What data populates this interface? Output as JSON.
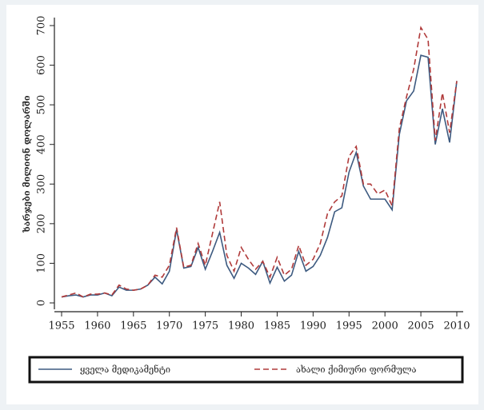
{
  "chart_data": {
    "type": "line",
    "y_label": "ხარჯები მილიონ დოლარში",
    "x": [
      1955,
      1956,
      1957,
      1958,
      1959,
      1960,
      1961,
      1962,
      1963,
      1964,
      1965,
      1966,
      1967,
      1968,
      1969,
      1970,
      1971,
      1972,
      1973,
      1974,
      1975,
      1976,
      1977,
      1978,
      1979,
      1980,
      1981,
      1982,
      1983,
      1984,
      1985,
      1986,
      1987,
      1988,
      1989,
      1990,
      1991,
      1992,
      1993,
      1994,
      1995,
      1996,
      1997,
      1998,
      1999,
      2000,
      2001,
      2002,
      2003,
      2004,
      2005,
      2006,
      2007,
      2008,
      2009,
      2010
    ],
    "series": [
      {
        "name": "ყველა მედიკამენტი",
        "color": "#3d5a80",
        "dash": false,
        "values": [
          15,
          18,
          20,
          15,
          20,
          20,
          25,
          18,
          40,
          32,
          32,
          35,
          45,
          65,
          48,
          80,
          185,
          88,
          92,
          140,
          85,
          130,
          178,
          95,
          62,
          100,
          88,
          72,
          105,
          50,
          90,
          55,
          70,
          130,
          80,
          92,
          120,
          165,
          230,
          240,
          330,
          380,
          295,
          262,
          262,
          262,
          235,
          425,
          510,
          535,
          625,
          620,
          400,
          490,
          405,
          560
        ]
      },
      {
        "name": "ახალი ქიმიური ფორმულა",
        "color": "#b03a3a",
        "dash": true,
        "values": [
          15,
          20,
          25,
          15,
          22,
          22,
          25,
          20,
          45,
          35,
          32,
          35,
          45,
          70,
          65,
          95,
          190,
          90,
          95,
          150,
          95,
          175,
          255,
          120,
          80,
          140,
          110,
          85,
          105,
          65,
          115,
          70,
          85,
          145,
          95,
          110,
          150,
          225,
          255,
          270,
          370,
          395,
          300,
          300,
          275,
          285,
          245,
          440,
          520,
          590,
          695,
          665,
          410,
          530,
          430,
          560
        ]
      }
    ],
    "xlim": [
      1955,
      2010
    ],
    "xticks": [
      1955,
      1960,
      1965,
      1970,
      1975,
      1980,
      1985,
      1990,
      1995,
      2000,
      2005,
      2010
    ],
    "ylim": [
      0,
      700
    ],
    "yticks": [
      0,
      100,
      200,
      300,
      400,
      500,
      600,
      700
    ],
    "legend": "bottom"
  }
}
